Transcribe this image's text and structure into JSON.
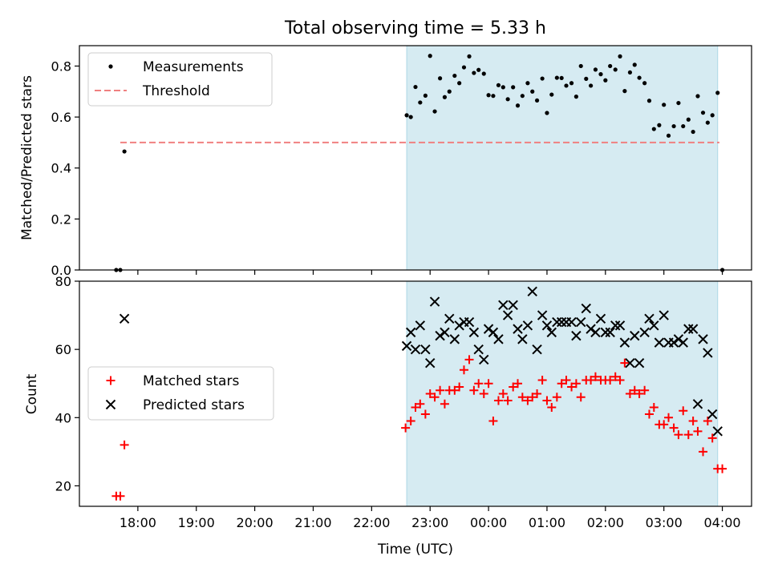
{
  "chart_data": [
    {
      "type": "scatter",
      "title": "Total observing time = 5.33 h",
      "xlabel": "",
      "ylabel": "Matched/Predicted stars",
      "ylim": [
        0,
        0.88
      ],
      "yticks": [
        0.0,
        0.2,
        0.4,
        0.6,
        0.8
      ],
      "ytick_labels": [
        "0.0",
        "0.2",
        "0.4",
        "0.6",
        "0.8"
      ],
      "grid": false,
      "legend_position": "top-left",
      "shaded_region_x": [
        22.6,
        27.92
      ],
      "series": [
        {
          "name": "Measurements",
          "marker": "dot",
          "color": "#000000",
          "x": [
            17.63,
            17.7,
            17.77,
            22.6,
            22.67,
            22.75,
            22.83,
            22.92,
            23.0,
            23.08,
            23.17,
            23.25,
            23.33,
            23.42,
            23.5,
            23.58,
            23.67,
            23.75,
            23.83,
            23.92,
            24.0,
            24.08,
            24.17,
            24.25,
            24.33,
            24.42,
            24.5,
            24.58,
            24.67,
            24.75,
            24.83,
            24.92,
            25.0,
            25.08,
            25.17,
            25.25,
            25.33,
            25.42,
            25.5,
            25.58,
            25.67,
            25.75,
            25.83,
            25.92,
            26.0,
            26.08,
            26.17,
            26.25,
            26.33,
            26.42,
            26.5,
            26.58,
            26.67,
            26.75,
            26.83,
            26.92,
            27.0,
            27.08,
            27.17,
            27.25,
            27.33,
            27.42,
            27.5,
            27.58,
            27.67,
            27.75,
            27.83,
            27.92,
            28.0
          ],
          "y": [
            0.0,
            0.0,
            0.465,
            0.607,
            0.6,
            0.718,
            0.657,
            0.684,
            0.84,
            0.622,
            0.752,
            0.678,
            0.7,
            0.762,
            0.733,
            0.795,
            0.838,
            0.773,
            0.785,
            0.77,
            0.686,
            0.683,
            0.725,
            0.717,
            0.67,
            0.717,
            0.645,
            0.683,
            0.733,
            0.7,
            0.665,
            0.751,
            0.616,
            0.688,
            0.754,
            0.753,
            0.723,
            0.733,
            0.68,
            0.8,
            0.75,
            0.723,
            0.786,
            0.768,
            0.744,
            0.8,
            0.786,
            0.838,
            0.702,
            0.775,
            0.805,
            0.754,
            0.733,
            0.664,
            0.553,
            0.568,
            0.648,
            0.527,
            0.564,
            0.655,
            0.564,
            0.59,
            0.542,
            0.682,
            0.617,
            0.578,
            0.607,
            0.695,
            0.0
          ]
        },
        {
          "name": "Threshold",
          "style": "dashed-line",
          "color": "#f08080",
          "x": [
            17.7,
            27.95
          ],
          "y": [
            0.5,
            0.5
          ]
        }
      ]
    },
    {
      "type": "scatter",
      "xlabel": "Time (UTC)",
      "ylabel": "Count",
      "ylim": [
        14,
        80
      ],
      "yticks": [
        20,
        40,
        60,
        80
      ],
      "ytick_labels": [
        "20",
        "40",
        "60",
        "80"
      ],
      "xlim": [
        17.0,
        28.5
      ],
      "xticks": [
        18,
        19,
        20,
        21,
        22,
        23,
        24,
        25,
        26,
        27,
        28
      ],
      "xtick_labels": [
        "18:00",
        "19:00",
        "20:00",
        "21:00",
        "22:00",
        "23:00",
        "00:00",
        "01:00",
        "02:00",
        "03:00",
        "04:00"
      ],
      "grid": false,
      "legend_position": "center-left",
      "shaded_region_x": [
        22.6,
        27.92
      ],
      "series": [
        {
          "name": "Matched stars",
          "marker": "plus",
          "color": "#ff0000",
          "x": [
            17.63,
            17.7,
            17.77,
            22.58,
            22.67,
            22.75,
            22.83,
            22.92,
            23.0,
            23.08,
            23.17,
            23.25,
            23.33,
            23.42,
            23.5,
            23.58,
            23.67,
            23.75,
            23.83,
            23.92,
            24.0,
            24.08,
            24.17,
            24.25,
            24.33,
            24.42,
            24.5,
            24.58,
            24.67,
            24.75,
            24.83,
            24.92,
            25.0,
            25.08,
            25.17,
            25.25,
            25.33,
            25.42,
            25.5,
            25.58,
            25.67,
            25.75,
            25.83,
            25.92,
            26.0,
            26.08,
            26.17,
            26.25,
            26.33,
            26.42,
            26.5,
            26.58,
            26.67,
            26.75,
            26.83,
            26.92,
            27.0,
            27.08,
            27.17,
            27.25,
            27.33,
            27.42,
            27.5,
            27.58,
            27.67,
            27.75,
            27.83,
            27.92,
            28.0
          ],
          "y": [
            17,
            17,
            32,
            37,
            39,
            43,
            44,
            41,
            47,
            46,
            48,
            44,
            48,
            48,
            49,
            54,
            57,
            48,
            50,
            47,
            50,
            39,
            45,
            47,
            45,
            49,
            50,
            46,
            45,
            46,
            47,
            51,
            45,
            43,
            46,
            50,
            51,
            49,
            50,
            46,
            51,
            51,
            52,
            51,
            51,
            51,
            52,
            51,
            56,
            47,
            48,
            47,
            48,
            41,
            43,
            38,
            38,
            40,
            37,
            35,
            42,
            35,
            39,
            36,
            30,
            39,
            34,
            25,
            25
          ]
        },
        {
          "name": "Predicted stars",
          "marker": "x",
          "color": "#000000",
          "x": [
            17.77,
            22.6,
            22.67,
            22.75,
            22.83,
            22.92,
            23.0,
            23.08,
            23.17,
            23.25,
            23.33,
            23.42,
            23.5,
            23.58,
            23.67,
            23.75,
            23.83,
            23.92,
            24.0,
            24.08,
            24.17,
            24.25,
            24.33,
            24.42,
            24.5,
            24.58,
            24.67,
            24.75,
            24.83,
            24.92,
            25.0,
            25.08,
            25.17,
            25.25,
            25.33,
            25.42,
            25.5,
            25.58,
            25.67,
            25.75,
            25.83,
            25.92,
            26.0,
            26.08,
            26.17,
            26.25,
            26.33,
            26.42,
            26.5,
            26.58,
            26.67,
            26.75,
            26.83,
            26.92,
            27.0,
            27.08,
            27.17,
            27.25,
            27.33,
            27.42,
            27.5,
            27.58,
            27.67,
            27.75,
            27.83,
            27.92
          ],
          "y": [
            69,
            61,
            65,
            60,
            67,
            60,
            56,
            74,
            64,
            65,
            69,
            63,
            67,
            68,
            68,
            65,
            60,
            57,
            66,
            65,
            63,
            73,
            70,
            73,
            66,
            63,
            67,
            77,
            60,
            70,
            67,
            65,
            68,
            68,
            68,
            68,
            64,
            68,
            72,
            66,
            65,
            69,
            65,
            65,
            67,
            67,
            62,
            56,
            64,
            56,
            65,
            69,
            67,
            62,
            70,
            62,
            62,
            63,
            62,
            66,
            66,
            44,
            63,
            59,
            41,
            36
          ]
        }
      ]
    }
  ]
}
